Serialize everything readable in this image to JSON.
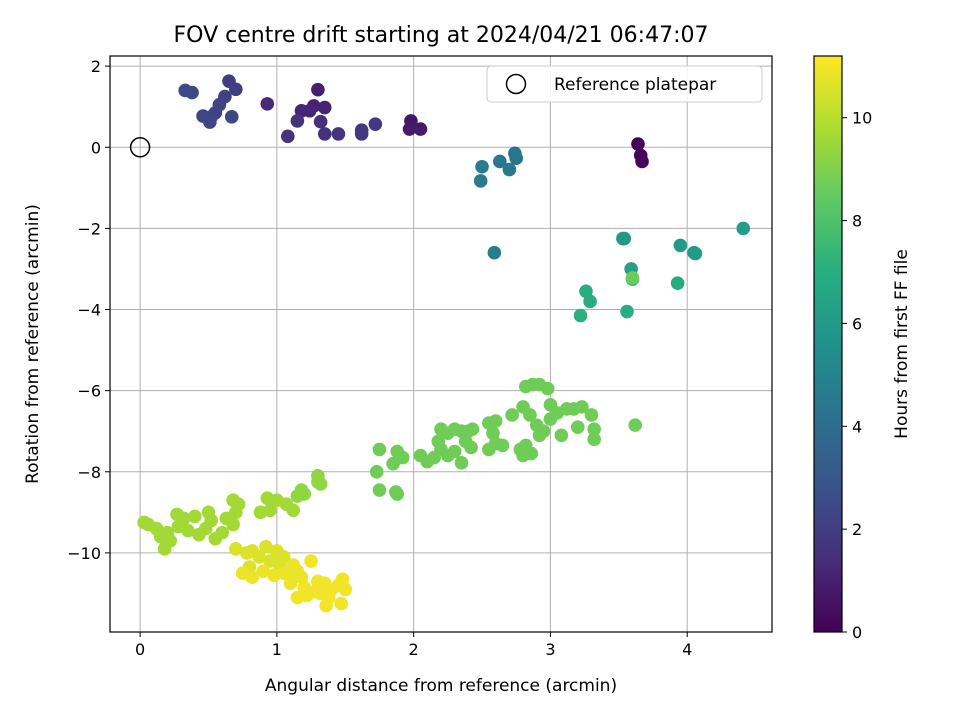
{
  "chart_data": {
    "type": "scatter",
    "title": "FOV centre drift starting at 2024/04/21 06:47:07",
    "xlabel": "Angular distance from reference (arcmin)",
    "ylabel": "Rotation from reference (arcmin)",
    "xlim": [
      -0.22,
      4.62
    ],
    "ylim": [
      -11.95,
      2.25
    ],
    "xticks": [
      "0",
      "1",
      "2",
      "3",
      "4"
    ],
    "yticks": [
      "2",
      "0",
      "−2",
      "−4",
      "−6",
      "−8",
      "−10"
    ],
    "grid": true,
    "legend": {
      "position": "top-right",
      "entries": [
        "Reference platepar"
      ]
    },
    "reference_point": {
      "x": 0,
      "y": 0
    },
    "colorbar": {
      "label": "Hours from first FF file",
      "min": 0,
      "max": 11.2,
      "ticks": [
        "0",
        "2",
        "4",
        "6",
        "8",
        "10"
      ],
      "colormap": "viridis"
    },
    "points": [
      [
        3.64,
        0.08,
        0.1
      ],
      [
        3.66,
        -0.2,
        0.15
      ],
      [
        3.67,
        -0.35,
        0.2
      ],
      [
        1.98,
        0.65,
        0.7
      ],
      [
        1.97,
        0.45,
        0.75
      ],
      [
        2.05,
        0.45,
        0.8
      ],
      [
        1.3,
        1.42,
        1.0
      ],
      [
        1.27,
        1.02,
        1.05
      ],
      [
        1.35,
        0.98,
        1.1
      ],
      [
        1.18,
        0.9,
        1.15
      ],
      [
        1.24,
        0.9,
        1.2
      ],
      [
        0.93,
        1.07,
        1.3
      ],
      [
        1.32,
        0.63,
        1.5
      ],
      [
        1.35,
        0.33,
        1.55
      ],
      [
        1.15,
        0.65,
        1.6
      ],
      [
        1.08,
        0.27,
        1.65
      ],
      [
        1.45,
        0.33,
        1.7
      ],
      [
        1.62,
        0.33,
        1.75
      ],
      [
        1.62,
        0.42,
        1.8
      ],
      [
        1.72,
        0.57,
        1.85
      ],
      [
        0.65,
        1.63,
        2.0
      ],
      [
        0.7,
        1.43,
        2.05
      ],
      [
        0.62,
        1.25,
        2.1
      ],
      [
        0.58,
        1.05,
        2.15
      ],
      [
        0.55,
        0.85,
        2.2
      ],
      [
        0.52,
        0.75,
        2.25
      ],
      [
        0.46,
        0.77,
        2.3
      ],
      [
        0.51,
        0.62,
        2.35
      ],
      [
        0.67,
        0.75,
        2.4
      ],
      [
        0.33,
        1.4,
        2.45
      ],
      [
        0.38,
        1.35,
        2.5
      ],
      [
        2.74,
        -0.15,
        4.3
      ],
      [
        2.75,
        -0.27,
        4.35
      ],
      [
        2.63,
        -0.35,
        4.4
      ],
      [
        2.7,
        -0.55,
        4.45
      ],
      [
        2.5,
        -0.48,
        4.6
      ],
      [
        2.49,
        -0.83,
        4.65
      ],
      [
        2.59,
        -2.6,
        4.7
      ],
      [
        3.53,
        -2.25,
        5.9
      ],
      [
        3.54,
        -2.25,
        5.95
      ],
      [
        3.95,
        -2.42,
        6.0
      ],
      [
        4.05,
        -2.6,
        6.05
      ],
      [
        4.06,
        -2.62,
        6.1
      ],
      [
        4.41,
        -2.0,
        6.15
      ],
      [
        3.59,
        -3.0,
        6.3
      ],
      [
        3.6,
        -3.25,
        6.8
      ],
      [
        3.93,
        -3.35,
        6.85
      ],
      [
        3.26,
        -3.55,
        6.9
      ],
      [
        3.29,
        -3.8,
        6.95
      ],
      [
        3.56,
        -4.05,
        7.0
      ],
      [
        3.22,
        -4.15,
        7.05
      ],
      [
        3.6,
        -3.22,
        8.6
      ],
      [
        2.87,
        -5.85,
        8.7
      ],
      [
        2.82,
        -5.9,
        8.7
      ],
      [
        2.92,
        -5.85,
        8.7
      ],
      [
        2.98,
        -5.95,
        8.7
      ],
      [
        3.0,
        -6.35,
        8.7
      ],
      [
        3.12,
        -6.45,
        8.7
      ],
      [
        3.23,
        -6.4,
        8.7
      ],
      [
        3.17,
        -6.45,
        8.7
      ],
      [
        3.3,
        -6.6,
        8.7
      ],
      [
        3.32,
        -6.95,
        8.7
      ],
      [
        3.2,
        -6.9,
        8.7
      ],
      [
        3.08,
        -7.1,
        8.7
      ],
      [
        3.32,
        -7.2,
        8.7
      ],
      [
        3.62,
        -6.85,
        8.7
      ],
      [
        2.8,
        -6.4,
        8.7
      ],
      [
        2.85,
        -6.6,
        8.7
      ],
      [
        2.9,
        -6.85,
        8.7
      ],
      [
        2.95,
        -7.0,
        8.7
      ],
      [
        3.0,
        -6.7,
        8.7
      ],
      [
        2.92,
        -7.1,
        8.7
      ],
      [
        2.82,
        -7.35,
        8.7
      ],
      [
        2.86,
        -7.55,
        8.7
      ],
      [
        2.78,
        -7.45,
        8.7
      ],
      [
        2.8,
        -7.6,
        8.7
      ],
      [
        3.05,
        -6.55,
        8.7
      ],
      [
        2.55,
        -6.8,
        8.7
      ],
      [
        2.6,
        -6.75,
        8.7
      ],
      [
        2.72,
        -6.6,
        8.7
      ],
      [
        2.58,
        -7.05,
        8.7
      ],
      [
        2.6,
        -7.3,
        8.7
      ],
      [
        2.55,
        -7.45,
        8.7
      ],
      [
        2.65,
        -7.35,
        8.7
      ],
      [
        2.35,
        -7.0,
        8.7
      ],
      [
        2.43,
        -6.95,
        8.7
      ],
      [
        2.38,
        -7.25,
        8.7
      ],
      [
        2.42,
        -7.4,
        8.7
      ],
      [
        2.3,
        -7.5,
        8.7
      ],
      [
        2.25,
        -7.6,
        8.7
      ],
      [
        2.35,
        -7.78,
        8.7
      ],
      [
        2.2,
        -6.95,
        8.7
      ],
      [
        2.25,
        -7.05,
        8.7
      ],
      [
        2.18,
        -7.25,
        8.7
      ],
      [
        2.2,
        -7.45,
        8.7
      ],
      [
        2.1,
        -7.75,
        8.7
      ],
      [
        2.15,
        -7.65,
        8.7
      ],
      [
        2.05,
        -7.6,
        8.7
      ],
      [
        2.3,
        -6.95,
        8.7
      ],
      [
        2.4,
        -7.0,
        8.7
      ],
      [
        1.75,
        -7.45,
        8.7
      ],
      [
        1.88,
        -7.5,
        8.7
      ],
      [
        1.92,
        -7.65,
        8.7
      ],
      [
        1.85,
        -7.8,
        8.7
      ],
      [
        1.73,
        -8.0,
        8.7
      ],
      [
        1.75,
        -8.45,
        8.7
      ],
      [
        1.87,
        -8.5,
        8.7
      ],
      [
        1.88,
        -8.55,
        8.7
      ],
      [
        1.3,
        -8.1,
        9.3
      ],
      [
        1.3,
        -8.25,
        9.3
      ],
      [
        1.32,
        -8.3,
        9.3
      ],
      [
        1.18,
        -8.45,
        9.3
      ],
      [
        1.15,
        -8.6,
        9.3
      ],
      [
        1.2,
        -8.55,
        9.3
      ],
      [
        0.93,
        -8.65,
        9.6
      ],
      [
        1.0,
        -8.7,
        9.6
      ],
      [
        1.07,
        -8.8,
        9.6
      ],
      [
        1.12,
        -8.95,
        9.6
      ],
      [
        0.95,
        -8.95,
        9.6
      ],
      [
        0.88,
        -9.0,
        9.6
      ],
      [
        0.72,
        -8.8,
        9.6
      ],
      [
        0.68,
        -8.7,
        9.6
      ],
      [
        0.7,
        -9.0,
        9.6
      ],
      [
        0.63,
        -9.15,
        9.6
      ],
      [
        0.68,
        -9.3,
        9.6
      ],
      [
        0.6,
        -9.5,
        9.6
      ],
      [
        0.55,
        -9.65,
        9.6
      ],
      [
        0.5,
        -9.0,
        9.6
      ],
      [
        0.52,
        -9.2,
        9.6
      ],
      [
        0.48,
        -9.4,
        9.6
      ],
      [
        0.43,
        -9.55,
        9.6
      ],
      [
        0.4,
        -9.1,
        9.6
      ],
      [
        0.32,
        -9.15,
        9.6
      ],
      [
        0.27,
        -9.05,
        9.6
      ],
      [
        0.35,
        -9.45,
        9.6
      ],
      [
        0.28,
        -9.35,
        9.6
      ],
      [
        0.03,
        -9.25,
        9.6
      ],
      [
        0.06,
        -9.3,
        9.6
      ],
      [
        0.12,
        -9.4,
        9.6
      ],
      [
        0.15,
        -9.6,
        9.6
      ],
      [
        0.2,
        -9.5,
        9.6
      ],
      [
        0.22,
        -9.7,
        9.6
      ],
      [
        0.18,
        -9.9,
        9.6
      ],
      [
        0.7,
        -9.9,
        10.6
      ],
      [
        0.78,
        -10.0,
        10.6
      ],
      [
        0.82,
        -9.95,
        10.6
      ],
      [
        0.92,
        -9.85,
        10.6
      ],
      [
        1.0,
        -9.95,
        10.6
      ],
      [
        0.87,
        -10.1,
        10.6
      ],
      [
        0.95,
        -10.2,
        10.6
      ],
      [
        1.05,
        -10.1,
        10.6
      ],
      [
        1.02,
        -10.3,
        10.6
      ],
      [
        0.8,
        -10.35,
        10.6
      ],
      [
        0.75,
        -10.5,
        10.9
      ],
      [
        0.82,
        -10.6,
        10.9
      ],
      [
        0.9,
        -10.45,
        10.9
      ],
      [
        0.98,
        -10.55,
        10.9
      ],
      [
        1.05,
        -10.5,
        10.9
      ],
      [
        1.1,
        -10.55,
        10.9
      ],
      [
        1.15,
        -10.45,
        10.9
      ],
      [
        1.12,
        -10.3,
        10.9
      ],
      [
        1.18,
        -10.6,
        10.9
      ],
      [
        1.1,
        -10.75,
        10.9
      ],
      [
        1.2,
        -10.85,
        11.0
      ],
      [
        1.22,
        -11.05,
        11.0
      ],
      [
        1.28,
        -10.95,
        11.0
      ],
      [
        1.35,
        -10.75,
        11.0
      ],
      [
        1.4,
        -10.9,
        11.0
      ],
      [
        1.45,
        -10.8,
        11.0
      ],
      [
        1.48,
        -10.65,
        11.0
      ],
      [
        1.5,
        -10.9,
        11.0
      ],
      [
        1.38,
        -11.1,
        11.0
      ],
      [
        1.32,
        -11.0,
        11.0
      ],
      [
        1.36,
        -11.3,
        11.0
      ],
      [
        1.47,
        -11.25,
        11.0
      ],
      [
        1.25,
        -10.2,
        11.0
      ],
      [
        1.3,
        -10.7,
        11.0
      ],
      [
        1.15,
        -11.1,
        11.0
      ]
    ]
  }
}
